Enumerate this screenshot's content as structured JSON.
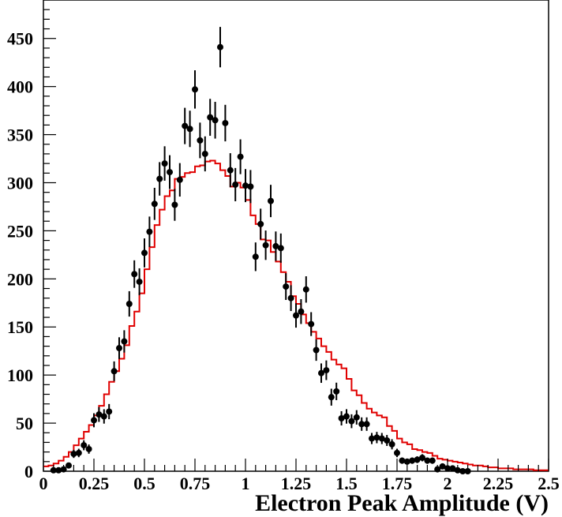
{
  "chart_data": {
    "type": "scatter",
    "title": "",
    "xlabel": "Electron Peak Amplitude (V)",
    "ylabel": "",
    "xlim": [
      0,
      2.5
    ],
    "ylim": [
      0,
      490
    ],
    "x_ticks": [
      0,
      0.25,
      0.5,
      0.75,
      1,
      1.25,
      1.5,
      1.75,
      2,
      2.25,
      2.5
    ],
    "x_tick_labels": [
      "0",
      "0.25",
      "0.5",
      "0.75",
      "1",
      "1.25",
      "1.5",
      "1.75",
      "2",
      "2.25",
      "2.5"
    ],
    "y_ticks": [
      0,
      50,
      100,
      150,
      200,
      250,
      300,
      350,
      400,
      450
    ],
    "y_tick_labels": [
      "0",
      "50",
      "100",
      "150",
      "200",
      "250",
      "300",
      "350",
      "400",
      "450"
    ],
    "grid": false,
    "legend": "none",
    "colors": {
      "data_points": "#000000",
      "histogram": "#e00000",
      "axes": "#000000"
    },
    "series": [
      {
        "kind": "points-with-error-bars",
        "x": [
          0.05,
          0.075,
          0.1,
          0.125,
          0.15,
          0.175,
          0.2,
          0.225,
          0.25,
          0.275,
          0.3,
          0.325,
          0.35,
          0.375,
          0.4,
          0.425,
          0.45,
          0.475,
          0.5,
          0.525,
          0.55,
          0.575,
          0.6,
          0.625,
          0.65,
          0.675,
          0.7,
          0.725,
          0.75,
          0.775,
          0.8,
          0.825,
          0.85,
          0.875,
          0.9,
          0.925,
          0.95,
          0.975,
          1.0,
          1.025,
          1.05,
          1.075,
          1.1,
          1.125,
          1.15,
          1.175,
          1.2,
          1.225,
          1.25,
          1.275,
          1.3,
          1.325,
          1.35,
          1.375,
          1.4,
          1.425,
          1.45,
          1.475,
          1.5,
          1.525,
          1.55,
          1.575,
          1.6,
          1.625,
          1.65,
          1.675,
          1.7,
          1.725,
          1.75,
          1.775,
          1.8,
          1.825,
          1.85,
          1.875,
          1.9,
          1.925,
          1.95,
          1.975,
          2.0,
          2.025,
          2.05,
          2.075,
          2.1
        ],
        "y": [
          1,
          1,
          2,
          6,
          18,
          19,
          27,
          23,
          53,
          59,
          57,
          62,
          104,
          128,
          135,
          174,
          205,
          197,
          227,
          249,
          278,
          304,
          320,
          311,
          277,
          303,
          359,
          356,
          397,
          344,
          330,
          368,
          365,
          441,
          362,
          313,
          298,
          327,
          297,
          296,
          223,
          257,
          235,
          281,
          234,
          232,
          192,
          180,
          162,
          166,
          189,
          153,
          126,
          102,
          105,
          77,
          83,
          55,
          57,
          52,
          56,
          49,
          49,
          34,
          35,
          34,
          32,
          28,
          19,
          11,
          10,
          11,
          12,
          14,
          11,
          11,
          2,
          5,
          3,
          3,
          1,
          0,
          0
        ],
        "error": [
          1,
          1,
          1.4,
          2.5,
          4.2,
          4.4,
          5.2,
          4.8,
          7.3,
          7.7,
          7.5,
          7.9,
          10.2,
          11.3,
          11.6,
          13.2,
          14.3,
          14,
          15.1,
          15.8,
          16.7,
          17.4,
          17.9,
          17.6,
          16.6,
          17.4,
          18.9,
          18.9,
          19.9,
          18.5,
          18.2,
          19.2,
          19.1,
          21,
          19,
          17.7,
          17.3,
          18.1,
          17.2,
          17.2,
          14.9,
          16,
          15.3,
          16.8,
          15.3,
          15.2,
          13.9,
          13.4,
          12.7,
          12.9,
          13.7,
          12.4,
          11.2,
          10.1,
          10.2,
          8.8,
          9.1,
          7.4,
          7.5,
          7.2,
          7.5,
          7,
          7,
          5.8,
          5.9,
          5.8,
          5.7,
          5.3,
          4.4,
          3.3,
          3.2,
          3.3,
          3.5,
          3.7,
          3.3,
          3.3,
          1.4,
          2.2,
          1.7,
          1.7,
          1,
          0,
          0
        ]
      },
      {
        "kind": "step-histogram",
        "bin_width": 0.025,
        "bin_edges_start": 0,
        "values": [
          5,
          6,
          8,
          11,
          15,
          20,
          27,
          34,
          41,
          48,
          58,
          68,
          80,
          93,
          104,
          117,
          131,
          151,
          166,
          185,
          210,
          233,
          256,
          272,
          286,
          292,
          304,
          306,
          310,
          311,
          317,
          318,
          322,
          323,
          320,
          313,
          307,
          296,
          300,
          295,
          282,
          266,
          257,
          241,
          240,
          228,
          218,
          207,
          197,
          182,
          174,
          163,
          154,
          145,
          138,
          130,
          124,
          116,
          111,
          107,
          96,
          84,
          79,
          71,
          65,
          61,
          58,
          56,
          47,
          42,
          34,
          30,
          28,
          23,
          22,
          20,
          19,
          16,
          13,
          12,
          11,
          10,
          9,
          8,
          7,
          6,
          6,
          5,
          4,
          4,
          3,
          3,
          3,
          2,
          2,
          2,
          2,
          1,
          1,
          1
        ]
      }
    ]
  }
}
